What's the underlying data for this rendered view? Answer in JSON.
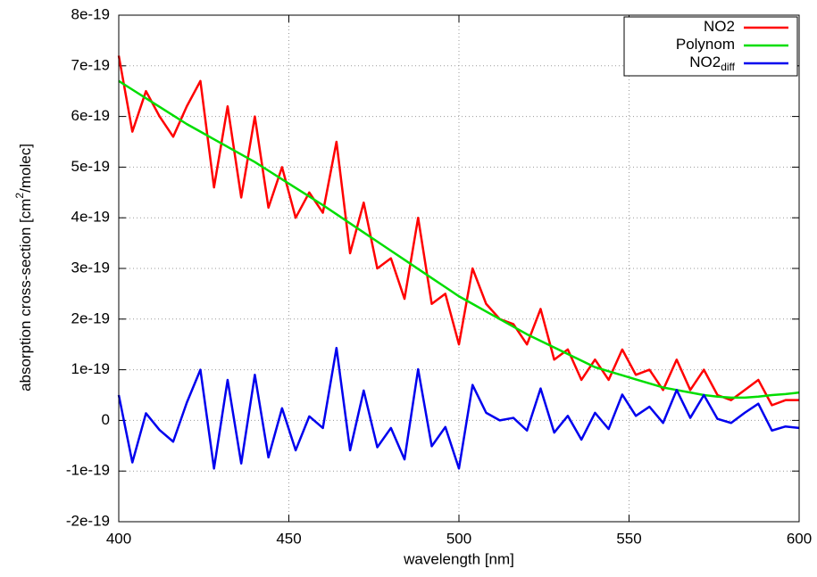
{
  "chart_data": {
    "type": "line",
    "x_label": "wavelength [nm]",
    "y_label": {
      "before": "absorption cross-section [cm",
      "superscript": "2",
      "after": "/molec]"
    },
    "x": [
      400,
      404,
      408,
      412,
      416,
      420,
      424,
      428,
      432,
      436,
      440,
      444,
      448,
      452,
      456,
      460,
      464,
      468,
      472,
      476,
      480,
      484,
      488,
      492,
      496,
      500,
      504,
      508,
      512,
      516,
      520,
      524,
      528,
      532,
      536,
      540,
      544,
      548,
      552,
      556,
      560,
      564,
      568,
      572,
      576,
      580,
      584,
      588,
      592,
      596,
      600
    ],
    "series": [
      {
        "name": "NO2",
        "color": "#ff0000",
        "values": [
          7.2e-19,
          5.7e-19,
          6.5e-19,
          6e-19,
          5.6e-19,
          6.2e-19,
          6.7e-19,
          4.6e-19,
          6.2e-19,
          4.4e-19,
          6e-19,
          4.2e-19,
          5e-19,
          4e-19,
          4.5e-19,
          4.1e-19,
          5.5e-19,
          3.3e-19,
          4.3e-19,
          3e-19,
          3.2e-19,
          2.4e-19,
          4e-19,
          2.3e-19,
          2.5e-19,
          1.5e-19,
          3e-19,
          2.3e-19,
          2e-19,
          1.9e-19,
          1.5e-19,
          2.2e-19,
          1.2e-19,
          1.4e-19,
          8e-20,
          1.2e-19,
          8e-20,
          1.4e-19,
          9e-20,
          1e-19,
          6e-20,
          1.2e-19,
          6e-20,
          1e-19,
          5e-20,
          4e-20,
          6e-20,
          8e-20,
          3e-20,
          4e-20,
          4e-20
        ]
      },
      {
        "name": "Polynom",
        "color": "#00dd00",
        "values": [
          6.7e-19,
          6.53e-19,
          6.36e-19,
          6.19e-19,
          6.02e-19,
          5.85e-19,
          5.7e-19,
          5.55e-19,
          5.4e-19,
          5.25e-19,
          5.1e-19,
          4.93e-19,
          4.76e-19,
          4.59e-19,
          4.42e-19,
          4.25e-19,
          4.07e-19,
          3.89e-19,
          3.71e-19,
          3.53e-19,
          3.35e-19,
          3.17e-19,
          2.99e-19,
          2.81e-19,
          2.63e-19,
          2.45e-19,
          2.3e-19,
          2.15e-19,
          2e-19,
          1.85e-19,
          1.7e-19,
          1.57e-19,
          1.44e-19,
          1.31e-19,
          1.18e-19,
          1.05e-19,
          9.7e-20,
          8.9e-20,
          8.1e-20,
          7.3e-20,
          6.5e-20,
          6e-20,
          5.5e-20,
          5e-20,
          4.7e-20,
          4.5e-20,
          4.5e-20,
          4.7e-20,
          5e-20,
          5.2e-20,
          5.5e-20
        ]
      },
      {
        "name": "NO2",
        "name_subscript": "diff",
        "color": "#0000ee",
        "values": [
          5e-20,
          -8.3e-20,
          1.4e-20,
          -1.9e-20,
          -4.2e-20,
          3.5e-20,
          1e-19,
          -9.5e-20,
          8e-20,
          -8.5e-20,
          9e-20,
          -7.3e-20,
          2.4e-20,
          -5.9e-20,
          8e-21,
          -1.5e-20,
          1.43e-19,
          -5.9e-20,
          5.9e-20,
          -5.3e-20,
          -1.5e-20,
          -7.7e-20,
          1.01e-19,
          -5.1e-20,
          -1.3e-20,
          -9.5e-20,
          7e-20,
          1.5e-20,
          0,
          5e-21,
          -2e-20,
          6.3e-20,
          -2.4e-20,
          9e-21,
          -3.8e-20,
          1.5e-20,
          -1.7e-20,
          5.1e-20,
          9e-21,
          2.7e-20,
          -5e-21,
          6e-20,
          5e-21,
          5e-20,
          3e-21,
          -5e-21,
          1.5e-20,
          3.3e-20,
          -2e-20,
          -1.2e-20,
          -1.5e-20
        ]
      }
    ],
    "xlim": [
      400,
      600
    ],
    "xticks": [
      400,
      450,
      500,
      550,
      600
    ],
    "ylim": [
      -2e-19,
      8e-19
    ],
    "yticks": [
      -2e-19,
      -1e-19,
      0,
      1e-19,
      2e-19,
      3e-19,
      4e-19,
      5e-19,
      6e-19,
      7e-19,
      8e-19
    ],
    "grid": true,
    "legend": "top-right"
  }
}
